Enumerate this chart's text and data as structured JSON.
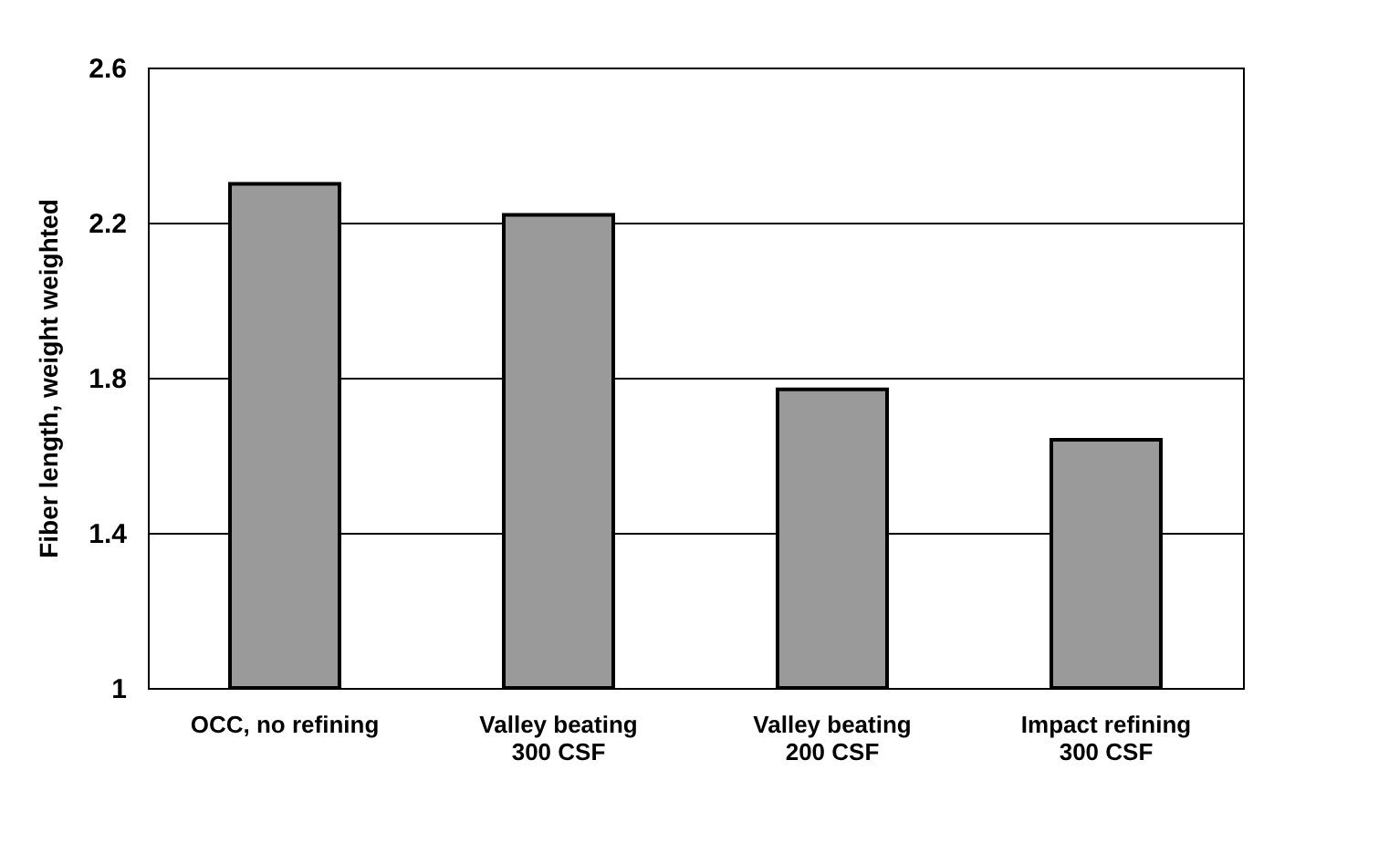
{
  "chart_data": {
    "type": "bar",
    "ylabel": "Fiber length, weight weighted",
    "categories": [
      "OCC, no refining",
      "Valley beating\n300 CSF",
      "Valley beating\n200 CSF",
      "Impact refining\n300 CSF"
    ],
    "values": [
      2.3,
      2.22,
      1.77,
      1.64
    ],
    "color": "#9a9a9a",
    "ylim": [
      1,
      2.6
    ],
    "yticks": [
      1,
      1.4,
      1.8,
      2.2,
      2.6
    ],
    "grid": "y"
  }
}
